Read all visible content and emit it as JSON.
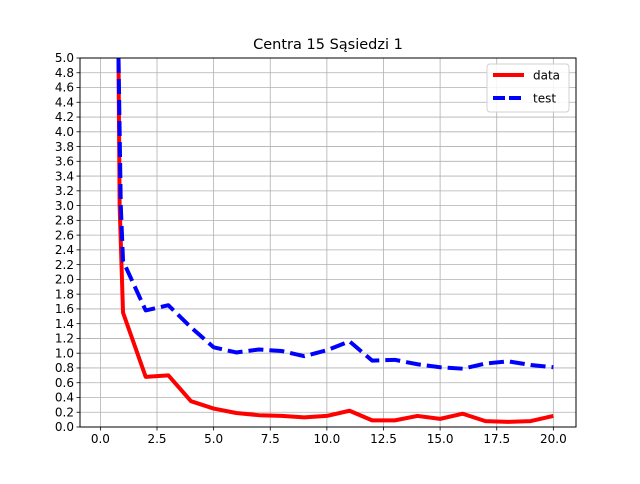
{
  "chart_data": {
    "type": "line",
    "title": "Centra 15 Sąsiedzi 1",
    "xlabel": "",
    "ylabel": "",
    "xlim": [
      -0.9,
      21.0
    ],
    "ylim": [
      0.0,
      5.0
    ],
    "xticks": [
      0.0,
      2.5,
      5.0,
      7.5,
      10.0,
      12.5,
      15.0,
      17.5,
      20.0
    ],
    "xtick_labels": [
      "0.0",
      "2.5",
      "5.0",
      "7.5",
      "10.0",
      "12.5",
      "15.0",
      "17.5",
      "20.0"
    ],
    "yticks": [
      0.0,
      0.2,
      0.4,
      0.6,
      0.8,
      1.0,
      1.2,
      1.4,
      1.6,
      1.8,
      2.0,
      2.2,
      2.4,
      2.6,
      2.8,
      3.0,
      3.2,
      3.4,
      3.6,
      3.8,
      4.0,
      4.2,
      4.4,
      4.6,
      4.8,
      5.0
    ],
    "ytick_labels": [
      "0.0",
      "0.2",
      "0.4",
      "0.6",
      "0.8",
      "1.0",
      "1.2",
      "1.4",
      "1.6",
      "1.8",
      "2.0",
      "2.2",
      "2.4",
      "2.6",
      "2.8",
      "3.0",
      "3.2",
      "3.4",
      "3.6",
      "3.8",
      "4.0",
      "4.2",
      "4.4",
      "4.6",
      "4.8",
      "5.0"
    ],
    "grid": true,
    "legend_position": "top-right",
    "x": [
      1,
      2,
      3,
      4,
      5,
      6,
      7,
      8,
      9,
      10,
      11,
      12,
      13,
      14,
      15,
      16,
      17,
      18,
      19,
      20
    ],
    "series": [
      {
        "name": "data",
        "color": "#ff0000",
        "style": "solid",
        "lead_in": {
          "x": [
            0.8,
            0.85
          ],
          "y": [
            5.0,
            3.0
          ]
        },
        "values": [
          1.55,
          0.68,
          0.7,
          0.35,
          0.25,
          0.19,
          0.16,
          0.15,
          0.13,
          0.15,
          0.22,
          0.09,
          0.09,
          0.15,
          0.11,
          0.18,
          0.08,
          0.07,
          0.08,
          0.15
        ]
      },
      {
        "name": "test",
        "color": "#0000ff",
        "style": "dashed",
        "lead_in": {
          "x": [
            0.8,
            0.9
          ],
          "y": [
            5.0,
            3.0
          ]
        },
        "values": [
          2.25,
          1.58,
          1.65,
          1.35,
          1.08,
          1.01,
          1.05,
          1.03,
          0.96,
          1.04,
          1.16,
          0.9,
          0.91,
          0.85,
          0.81,
          0.79,
          0.86,
          0.89,
          0.84,
          0.81
        ]
      }
    ]
  }
}
